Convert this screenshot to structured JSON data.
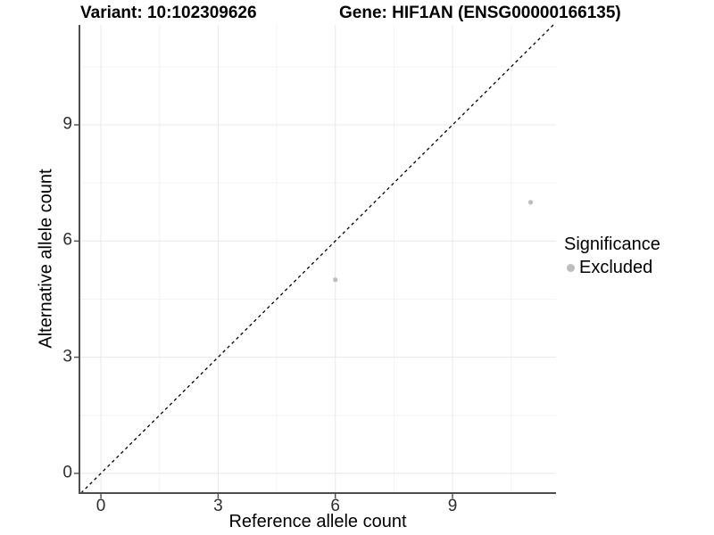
{
  "title": {
    "variant_label": "Variant: 10:102309626",
    "gene_label": "Gene: HIF1AN (ENSG00000166135)"
  },
  "legend": {
    "title": "Significance",
    "items": [
      {
        "label": "Excluded",
        "color": "#bdbdbd"
      }
    ]
  },
  "colors": {
    "background": "#ffffff",
    "grid_major": "#e8e8e8",
    "grid_minor": "#f3f3f3",
    "axis_line": "#4d4d4d",
    "tick_label": "#2e2e2e",
    "point_excluded": "#bdbdbd",
    "identity_line": "#000000"
  },
  "chart_data": {
    "type": "scatter",
    "title": "Variant: 10:102309626    Gene: HIF1AN (ENSG00000166135)",
    "xlabel": "Reference allele count",
    "ylabel": "Alternative allele count",
    "x_ticks": [
      0,
      3,
      6,
      9
    ],
    "y_ticks": [
      0,
      3,
      6,
      9
    ],
    "x_minor_gridlines": [
      1.5,
      4.5,
      7.5,
      10.5
    ],
    "y_minor_gridlines": [
      1.5,
      4.5,
      7.5,
      10.5
    ],
    "xlim": [
      -0.55,
      11.65
    ],
    "ylim": [
      -0.51,
      11.58
    ],
    "grid": "major+minor",
    "legend_position": "right",
    "legend_title": "Significance",
    "series": [
      {
        "name": "Excluded",
        "color": "#bdbdbd",
        "points": [
          [
            6,
            5
          ],
          [
            11,
            7
          ]
        ]
      }
    ],
    "reference_line": {
      "kind": "identity y=x",
      "style": "dashed",
      "color": "#000000"
    }
  }
}
